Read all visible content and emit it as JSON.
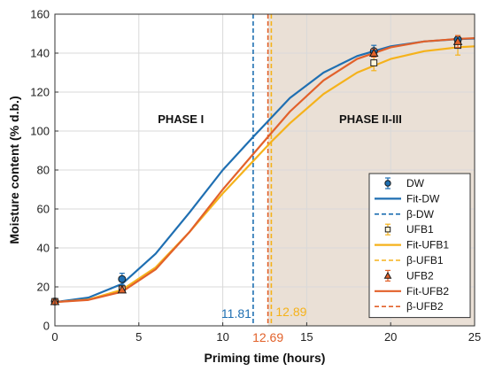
{
  "chart_data": {
    "type": "line",
    "xlabel": "Priming time (hours)",
    "ylabel": "Moisture content (% d.b.)",
    "xlim": [
      0,
      25
    ],
    "ylim": [
      0,
      160
    ],
    "xticks": [
      0,
      5,
      10,
      15,
      20,
      25
    ],
    "yticks": [
      0,
      20,
      40,
      60,
      80,
      100,
      120,
      140,
      160
    ],
    "grid": true,
    "legend_position": "bottom-right",
    "colors": {
      "dw": "#1f6fb2",
      "ufb1": "#f5b21b",
      "ufb2": "#e2612a",
      "phase_shade": "#eae0d6"
    },
    "phase_shade_start": 12.69,
    "annotations": [
      {
        "key": "phase1",
        "text": "PHASE I",
        "x": 7.5,
        "y": 104
      },
      {
        "key": "phase2",
        "text": "PHASE II-III",
        "x": 18.8,
        "y": 104
      }
    ],
    "beta_labels": [
      {
        "key": "b-dw",
        "text": "11.81",
        "x": 11.81,
        "color": "#1f6fb2"
      },
      {
        "key": "b-ufb2",
        "text": "12.69",
        "x": 12.69,
        "color": "#e2612a"
      },
      {
        "key": "b-ufb1",
        "text": "12.89",
        "x": 12.89,
        "color": "#f5b21b"
      }
    ],
    "series": [
      {
        "key": "dw",
        "name": "DW",
        "marker": "circle",
        "color": "#1f6fb2",
        "points": [
          {
            "x": 0,
            "y": 12.5,
            "err": 1
          },
          {
            "x": 4,
            "y": 24,
            "err": 3
          },
          {
            "x": 19,
            "y": 141,
            "err": 3
          },
          {
            "x": 24,
            "y": 147,
            "err": 2
          }
        ]
      },
      {
        "key": "ufb1",
        "name": "UFB1",
        "marker": "square",
        "color": "#f5b21b",
        "points": [
          {
            "x": 0,
            "y": 12.5,
            "err": 1
          },
          {
            "x": 4,
            "y": 19,
            "err": 1.5
          },
          {
            "x": 19,
            "y": 135,
            "err": 4
          },
          {
            "x": 24,
            "y": 144,
            "err": 5
          }
        ]
      },
      {
        "key": "ufb2",
        "name": "UFB2",
        "marker": "triangle",
        "color": "#e2612a",
        "points": [
          {
            "x": 0,
            "y": 12.5,
            "err": 1
          },
          {
            "x": 4,
            "y": 18.5,
            "err": 1.5
          },
          {
            "x": 19,
            "y": 140,
            "err": 2
          },
          {
            "x": 24,
            "y": 146,
            "err": 3
          }
        ]
      }
    ],
    "fits": [
      {
        "key": "dw",
        "name": "Fit-DW",
        "color": "#1f6fb2",
        "points": [
          [
            0,
            12.2
          ],
          [
            2,
            14.5
          ],
          [
            4,
            21.5
          ],
          [
            6,
            37
          ],
          [
            8,
            58
          ],
          [
            10,
            80
          ],
          [
            11.81,
            97
          ],
          [
            14,
            117
          ],
          [
            16,
            130
          ],
          [
            18,
            138.5
          ],
          [
            20,
            143.5
          ],
          [
            22,
            146
          ],
          [
            24,
            147.2
          ],
          [
            25,
            147.5
          ]
        ]
      },
      {
        "key": "ufb1",
        "name": "Fit-UFB1",
        "color": "#f5b21b",
        "points": [
          [
            0,
            12.2
          ],
          [
            2,
            13.5
          ],
          [
            4,
            18.5
          ],
          [
            6,
            30
          ],
          [
            8,
            48
          ],
          [
            10,
            68
          ],
          [
            12.89,
            94.5
          ],
          [
            14,
            104
          ],
          [
            16,
            119
          ],
          [
            18,
            130
          ],
          [
            20,
            137
          ],
          [
            22,
            141
          ],
          [
            24,
            143
          ],
          [
            25,
            143.5
          ]
        ]
      },
      {
        "key": "ufb2",
        "name": "Fit-UFB2",
        "color": "#e2612a",
        "points": [
          [
            0,
            12.2
          ],
          [
            2,
            13.3
          ],
          [
            4,
            17.5
          ],
          [
            6,
            29
          ],
          [
            8,
            48
          ],
          [
            10,
            70
          ],
          [
            12.69,
            97
          ],
          [
            14,
            110
          ],
          [
            16,
            126
          ],
          [
            18,
            137
          ],
          [
            20,
            143
          ],
          [
            22,
            146
          ],
          [
            24,
            147.3
          ],
          [
            25,
            147.7
          ]
        ]
      }
    ],
    "betas": [
      {
        "key": "dw",
        "name": "β-DW",
        "x": 11.81,
        "color": "#1f6fb2"
      },
      {
        "key": "ufb1",
        "name": "β-UFB1",
        "x": 12.89,
        "color": "#f5b21b"
      },
      {
        "key": "ufb2",
        "name": "β-UFB2",
        "x": 12.69,
        "color": "#e2612a"
      }
    ],
    "legend": [
      {
        "kind": "marker",
        "marker": "circle",
        "series": "dw",
        "text": "DW"
      },
      {
        "kind": "line",
        "series": "dw",
        "text": "Fit-DW"
      },
      {
        "kind": "dash",
        "series": "dw",
        "text": "β-DW"
      },
      {
        "kind": "marker",
        "marker": "square",
        "series": "ufb1",
        "text": "UFB1"
      },
      {
        "kind": "line",
        "series": "ufb1",
        "text": "Fit-UFB1"
      },
      {
        "kind": "dash",
        "series": "ufb1",
        "text": "β-UFB1"
      },
      {
        "kind": "marker",
        "marker": "triangle",
        "series": "ufb2",
        "text": "UFB2"
      },
      {
        "kind": "line",
        "series": "ufb2",
        "text": "Fit-UFB2"
      },
      {
        "kind": "dash",
        "series": "ufb2",
        "text": "β-UFB2"
      }
    ]
  }
}
